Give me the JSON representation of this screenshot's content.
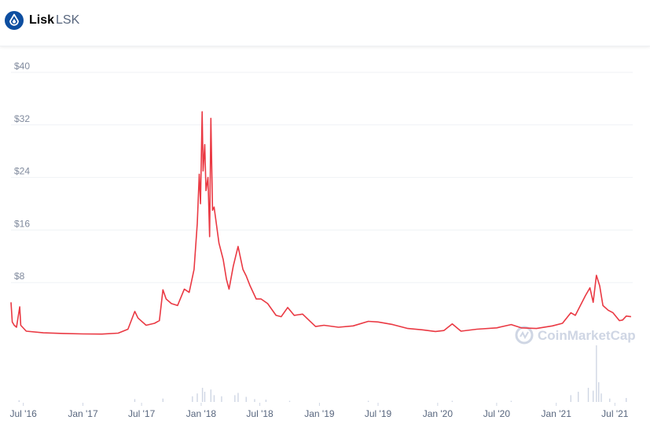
{
  "header": {
    "name": "Lisk",
    "symbol": "LSK",
    "logo_icon": "lisk-logo-icon"
  },
  "watermark": "CoinMarketCap",
  "colors": {
    "price_line": "#ea3943",
    "volume_bars": "#cfd6e4",
    "grid": "#eff2f5"
  },
  "chart_data": {
    "type": "line",
    "title": "",
    "xlabel": "",
    "ylabel": "",
    "ylim": [
      0,
      40
    ],
    "yticks": [
      8,
      16,
      24,
      32,
      40
    ],
    "ytick_labels": [
      "$8",
      "$16",
      "$24",
      "$32",
      "$40"
    ],
    "xtick_labels": [
      "Jul '16",
      "Jan '17",
      "Jul '17",
      "Jan '18",
      "Jul '18",
      "Jan '19",
      "Jul '19",
      "Jan '20",
      "Jul '20",
      "Jan '21",
      "Jul '21"
    ],
    "xtick_dates": [
      "2016-07-01",
      "2017-01-01",
      "2017-07-01",
      "2018-01-01",
      "2018-07-01",
      "2019-01-01",
      "2019-07-01",
      "2020-01-01",
      "2020-07-01",
      "2021-01-01",
      "2021-07-01"
    ],
    "xlim": [
      "2016-05-24",
      "2021-08-25"
    ],
    "grid": true,
    "series": [
      {
        "kind": "price",
        "points": [
          [
            "2016-05-24",
            5.0
          ],
          [
            "2016-05-28",
            2.0
          ],
          [
            "2016-06-03",
            1.5
          ],
          [
            "2016-06-10",
            1.2
          ],
          [
            "2016-06-20",
            4.3
          ],
          [
            "2016-06-23",
            1.5
          ],
          [
            "2016-07-10",
            0.6
          ],
          [
            "2016-09-01",
            0.35
          ],
          [
            "2016-11-01",
            0.25
          ],
          [
            "2017-01-01",
            0.18
          ],
          [
            "2017-03-01",
            0.15
          ],
          [
            "2017-04-20",
            0.3
          ],
          [
            "2017-05-20",
            0.9
          ],
          [
            "2017-06-10",
            3.6
          ],
          [
            "2017-06-20",
            2.6
          ],
          [
            "2017-07-15",
            1.5
          ],
          [
            "2017-08-10",
            1.8
          ],
          [
            "2017-08-25",
            2.2
          ],
          [
            "2017-09-05",
            6.9
          ],
          [
            "2017-09-15",
            5.5
          ],
          [
            "2017-10-01",
            4.8
          ],
          [
            "2017-10-20",
            4.5
          ],
          [
            "2017-11-10",
            7.0
          ],
          [
            "2017-11-25",
            6.5
          ],
          [
            "2017-12-10",
            10.0
          ],
          [
            "2017-12-20",
            17.0
          ],
          [
            "2017-12-26",
            24.5
          ],
          [
            "2017-12-30",
            20.0
          ],
          [
            "2018-01-04",
            34.0
          ],
          [
            "2018-01-07",
            25.0
          ],
          [
            "2018-01-12",
            29.0
          ],
          [
            "2018-01-16",
            22.0
          ],
          [
            "2018-01-22",
            24.0
          ],
          [
            "2018-01-27",
            15.0
          ],
          [
            "2018-01-31",
            33.0
          ],
          [
            "2018-02-05",
            19.0
          ],
          [
            "2018-02-10",
            19.5
          ],
          [
            "2018-02-25",
            14.0
          ],
          [
            "2018-03-10",
            11.5
          ],
          [
            "2018-03-20",
            8.5
          ],
          [
            "2018-03-28",
            7.0
          ],
          [
            "2018-04-10",
            10.5
          ],
          [
            "2018-04-25",
            13.5
          ],
          [
            "2018-05-10",
            10.0
          ],
          [
            "2018-05-20",
            9.0
          ],
          [
            "2018-06-01",
            7.5
          ],
          [
            "2018-06-20",
            5.5
          ],
          [
            "2018-07-05",
            5.5
          ],
          [
            "2018-07-25",
            4.8
          ],
          [
            "2018-08-20",
            3.0
          ],
          [
            "2018-09-05",
            2.8
          ],
          [
            "2018-09-25",
            4.2
          ],
          [
            "2018-10-15",
            3.0
          ],
          [
            "2018-11-10",
            3.2
          ],
          [
            "2018-12-01",
            2.2
          ],
          [
            "2018-12-20",
            1.3
          ],
          [
            "2019-01-15",
            1.5
          ],
          [
            "2019-03-01",
            1.2
          ],
          [
            "2019-04-15",
            1.4
          ],
          [
            "2019-06-01",
            2.1
          ],
          [
            "2019-07-01",
            2.0
          ],
          [
            "2019-08-15",
            1.6
          ],
          [
            "2019-10-01",
            1.0
          ],
          [
            "2019-11-15",
            0.8
          ],
          [
            "2019-12-25",
            0.55
          ],
          [
            "2020-01-20",
            0.7
          ],
          [
            "2020-02-15",
            1.7
          ],
          [
            "2020-03-13",
            0.6
          ],
          [
            "2020-05-01",
            0.9
          ],
          [
            "2020-07-01",
            1.1
          ],
          [
            "2020-08-15",
            1.6
          ],
          [
            "2020-09-15",
            1.1
          ],
          [
            "2020-11-01",
            1.0
          ],
          [
            "2020-12-20",
            1.4
          ],
          [
            "2021-01-20",
            1.8
          ],
          [
            "2021-02-15",
            3.4
          ],
          [
            "2021-03-01",
            3.0
          ],
          [
            "2021-04-01",
            6.0
          ],
          [
            "2021-04-15",
            7.2
          ],
          [
            "2021-04-25",
            5.0
          ],
          [
            "2021-05-05",
            9.1
          ],
          [
            "2021-05-15",
            7.5
          ],
          [
            "2021-05-25",
            4.5
          ],
          [
            "2021-06-10",
            3.8
          ],
          [
            "2021-06-25",
            3.4
          ],
          [
            "2021-07-15",
            2.2
          ],
          [
            "2021-07-25",
            2.3
          ],
          [
            "2021-08-05",
            2.9
          ],
          [
            "2021-08-20",
            2.8
          ]
        ]
      },
      {
        "kind": "volume",
        "relative": true,
        "points": [
          [
            "2016-06-18",
            0.03
          ],
          [
            "2017-06-10",
            0.05
          ],
          [
            "2017-09-05",
            0.06
          ],
          [
            "2017-12-05",
            0.1
          ],
          [
            "2017-12-20",
            0.15
          ],
          [
            "2018-01-05",
            0.25
          ],
          [
            "2018-01-12",
            0.18
          ],
          [
            "2018-01-31",
            0.22
          ],
          [
            "2018-02-10",
            0.12
          ],
          [
            "2018-03-05",
            0.1
          ],
          [
            "2018-04-15",
            0.12
          ],
          [
            "2018-04-25",
            0.16
          ],
          [
            "2018-05-20",
            0.09
          ],
          [
            "2018-06-15",
            0.05
          ],
          [
            "2018-07-20",
            0.04
          ],
          [
            "2018-10-01",
            0.02
          ],
          [
            "2019-06-01",
            0.02
          ],
          [
            "2020-02-15",
            0.02
          ],
          [
            "2020-08-15",
            0.02
          ],
          [
            "2021-02-15",
            0.12
          ],
          [
            "2021-03-10",
            0.18
          ],
          [
            "2021-04-10",
            0.25
          ],
          [
            "2021-04-25",
            0.2
          ],
          [
            "2021-05-05",
            1.0
          ],
          [
            "2021-05-12",
            0.35
          ],
          [
            "2021-05-20",
            0.15
          ],
          [
            "2021-06-15",
            0.06
          ],
          [
            "2021-08-05",
            0.07
          ]
        ]
      }
    ]
  }
}
